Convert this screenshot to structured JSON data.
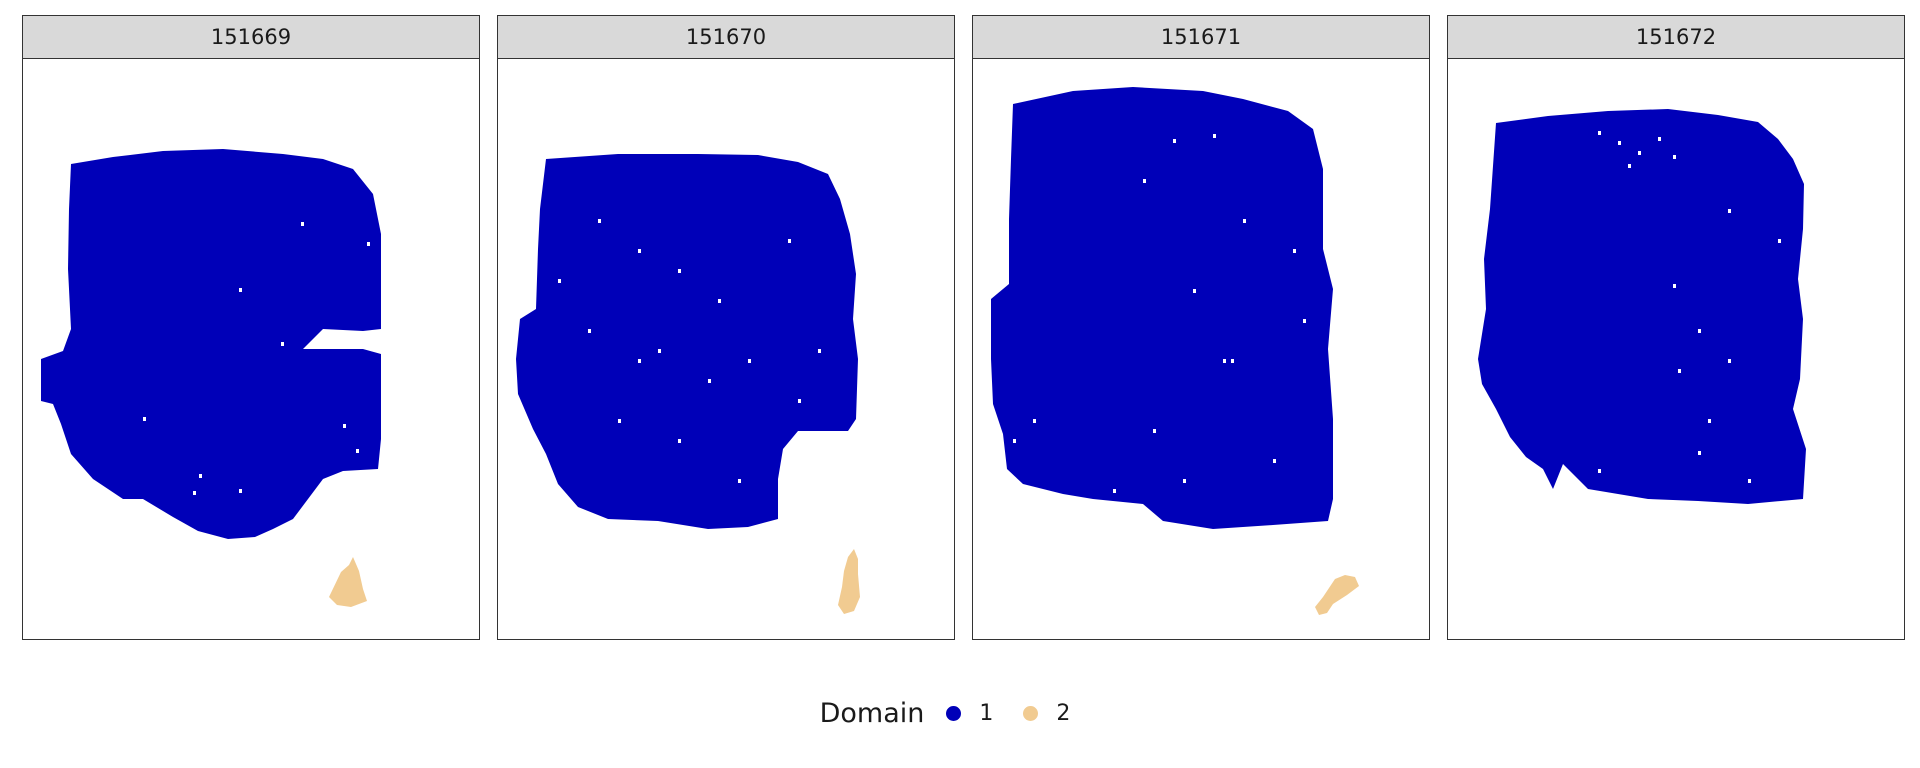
{
  "chart_data": {
    "type": "scatter",
    "facets": [
      "151669",
      "151670",
      "151671",
      "151672"
    ],
    "legend": {
      "title": "Domain",
      "position": "bottom",
      "entries": [
        {
          "label": "1",
          "color": "#0000b8"
        },
        {
          "label": "2",
          "color": "#f1cb91"
        }
      ]
    },
    "grid": false,
    "axes_visible": false
  }
}
